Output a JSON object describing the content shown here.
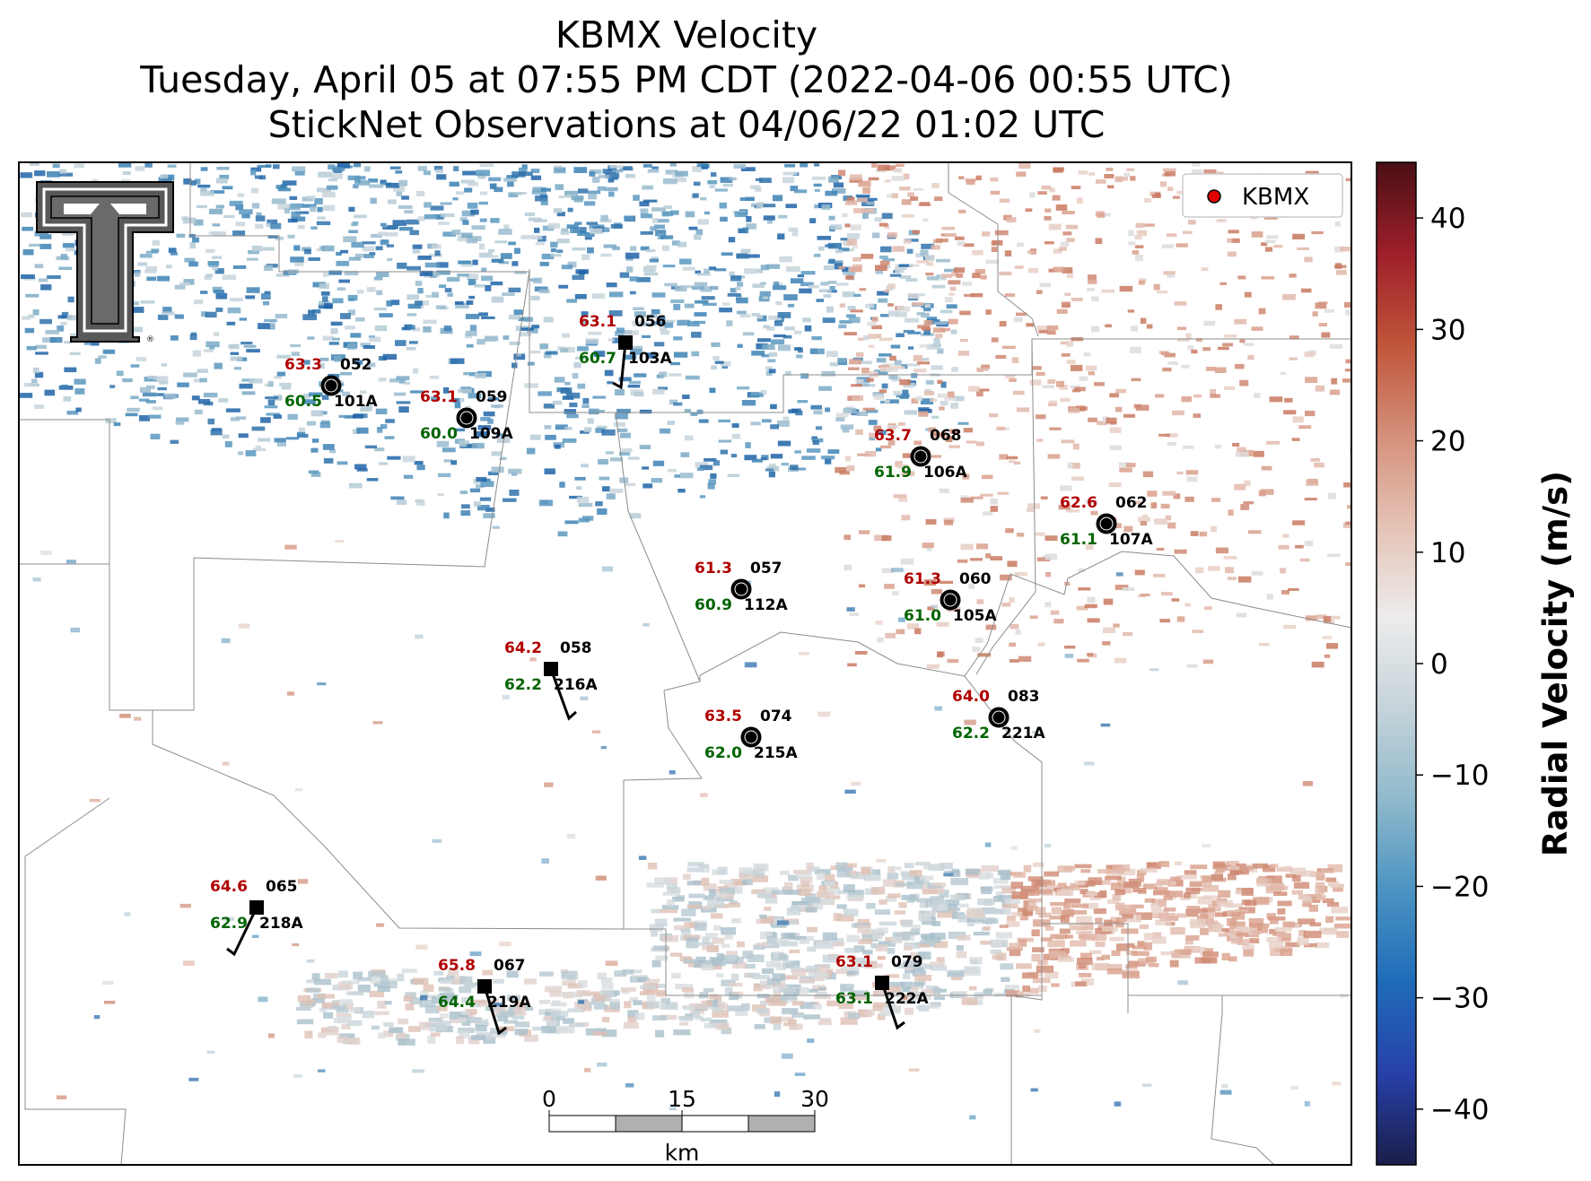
{
  "title": {
    "line1": "KBMX Velocity",
    "line2": "Tuesday, April 05 at 07:55 PM CDT (2022-04-06 00:55 UTC)",
    "line3": "StickNet Observations at 04/06/22 01:02 UTC"
  },
  "legend": {
    "label": "KBMX",
    "marker_color": "#e00000"
  },
  "colorbar": {
    "title": "Radial Velocity (m/s)",
    "ticks": [
      "40",
      "30",
      "20",
      "10",
      "0",
      "−10",
      "−20",
      "−30",
      "−40"
    ],
    "range": [
      -45,
      45
    ],
    "colors": [
      "#1b1e4a",
      "#2740a8",
      "#1f6bb8",
      "#4a93c2",
      "#8fb9cc",
      "#c5d3da",
      "#ececec",
      "#e5c3b6",
      "#d4907a",
      "#c0553a",
      "#9e1f2a",
      "#4a0f14"
    ]
  },
  "scalebar": {
    "labels": [
      "0",
      "15",
      "30"
    ],
    "unit": "km"
  },
  "logo": {
    "name": "texas-tech-double-t-logo"
  },
  "stations": [
    {
      "id": "052",
      "sub": "101A",
      "temp": "63.3",
      "dew": "60.5",
      "marker": "circle"
    },
    {
      "id": "059",
      "sub": "109A",
      "temp": "63.1",
      "dew": "60.0",
      "marker": "circle"
    },
    {
      "id": "056",
      "sub": "103A",
      "temp": "63.1",
      "dew": "60.7",
      "marker": "square"
    },
    {
      "id": "068",
      "sub": "106A",
      "temp": "63.7",
      "dew": "61.9",
      "marker": "circle"
    },
    {
      "id": "062",
      "sub": "107A",
      "temp": "62.6",
      "dew": "61.1",
      "marker": "circle"
    },
    {
      "id": "057",
      "sub": "112A",
      "temp": "61.3",
      "dew": "60.9",
      "marker": "circle"
    },
    {
      "id": "060",
      "sub": "105A",
      "temp": "61.3",
      "dew": "61.0",
      "marker": "circle"
    },
    {
      "id": "058",
      "sub": "216A",
      "temp": "64.2",
      "dew": "62.2",
      "marker": "square"
    },
    {
      "id": "074",
      "sub": "215A",
      "temp": "63.5",
      "dew": "62.0",
      "marker": "circle"
    },
    {
      "id": "083",
      "sub": "221A",
      "temp": "64.0",
      "dew": "62.2",
      "marker": "circle"
    },
    {
      "id": "065",
      "sub": "218A",
      "temp": "64.6",
      "dew": "62.9",
      "marker": "square"
    },
    {
      "id": "067",
      "sub": "219A",
      "temp": "65.8",
      "dew": "64.4",
      "marker": "square"
    },
    {
      "id": "079",
      "sub": "222A",
      "temp": "63.1",
      "dew": "63.1",
      "marker": "square"
    }
  ]
}
